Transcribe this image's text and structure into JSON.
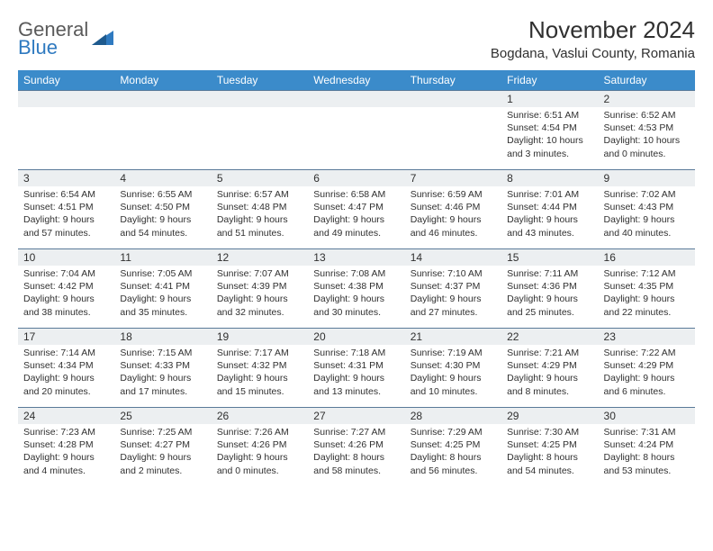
{
  "logo": {
    "name": "General",
    "sub": "Blue"
  },
  "title": "November 2024",
  "subtitle": "Bogdana, Vaslui County, Romania",
  "colors": {
    "header_bg": "#3b8bca",
    "header_fg": "#ffffff",
    "daynum_bg": "#eceff1",
    "row_border": "#5a7a99",
    "text": "#303030",
    "logo_gray": "#5a5a5a",
    "logo_blue": "#2f7ac0"
  },
  "weekdays": [
    "Sunday",
    "Monday",
    "Tuesday",
    "Wednesday",
    "Thursday",
    "Friday",
    "Saturday"
  ],
  "weeks": [
    [
      null,
      null,
      null,
      null,
      null,
      {
        "d": "1",
        "sr": "6:51 AM",
        "ss": "4:54 PM",
        "dl": "10 hours and 3 minutes."
      },
      {
        "d": "2",
        "sr": "6:52 AM",
        "ss": "4:53 PM",
        "dl": "10 hours and 0 minutes."
      }
    ],
    [
      {
        "d": "3",
        "sr": "6:54 AM",
        "ss": "4:51 PM",
        "dl": "9 hours and 57 minutes."
      },
      {
        "d": "4",
        "sr": "6:55 AM",
        "ss": "4:50 PM",
        "dl": "9 hours and 54 minutes."
      },
      {
        "d": "5",
        "sr": "6:57 AM",
        "ss": "4:48 PM",
        "dl": "9 hours and 51 minutes."
      },
      {
        "d": "6",
        "sr": "6:58 AM",
        "ss": "4:47 PM",
        "dl": "9 hours and 49 minutes."
      },
      {
        "d": "7",
        "sr": "6:59 AM",
        "ss": "4:46 PM",
        "dl": "9 hours and 46 minutes."
      },
      {
        "d": "8",
        "sr": "7:01 AM",
        "ss": "4:44 PM",
        "dl": "9 hours and 43 minutes."
      },
      {
        "d": "9",
        "sr": "7:02 AM",
        "ss": "4:43 PM",
        "dl": "9 hours and 40 minutes."
      }
    ],
    [
      {
        "d": "10",
        "sr": "7:04 AM",
        "ss": "4:42 PM",
        "dl": "9 hours and 38 minutes."
      },
      {
        "d": "11",
        "sr": "7:05 AM",
        "ss": "4:41 PM",
        "dl": "9 hours and 35 minutes."
      },
      {
        "d": "12",
        "sr": "7:07 AM",
        "ss": "4:39 PM",
        "dl": "9 hours and 32 minutes."
      },
      {
        "d": "13",
        "sr": "7:08 AM",
        "ss": "4:38 PM",
        "dl": "9 hours and 30 minutes."
      },
      {
        "d": "14",
        "sr": "7:10 AM",
        "ss": "4:37 PM",
        "dl": "9 hours and 27 minutes."
      },
      {
        "d": "15",
        "sr": "7:11 AM",
        "ss": "4:36 PM",
        "dl": "9 hours and 25 minutes."
      },
      {
        "d": "16",
        "sr": "7:12 AM",
        "ss": "4:35 PM",
        "dl": "9 hours and 22 minutes."
      }
    ],
    [
      {
        "d": "17",
        "sr": "7:14 AM",
        "ss": "4:34 PM",
        "dl": "9 hours and 20 minutes."
      },
      {
        "d": "18",
        "sr": "7:15 AM",
        "ss": "4:33 PM",
        "dl": "9 hours and 17 minutes."
      },
      {
        "d": "19",
        "sr": "7:17 AM",
        "ss": "4:32 PM",
        "dl": "9 hours and 15 minutes."
      },
      {
        "d": "20",
        "sr": "7:18 AM",
        "ss": "4:31 PM",
        "dl": "9 hours and 13 minutes."
      },
      {
        "d": "21",
        "sr": "7:19 AM",
        "ss": "4:30 PM",
        "dl": "9 hours and 10 minutes."
      },
      {
        "d": "22",
        "sr": "7:21 AM",
        "ss": "4:29 PM",
        "dl": "9 hours and 8 minutes."
      },
      {
        "d": "23",
        "sr": "7:22 AM",
        "ss": "4:29 PM",
        "dl": "9 hours and 6 minutes."
      }
    ],
    [
      {
        "d": "24",
        "sr": "7:23 AM",
        "ss": "4:28 PM",
        "dl": "9 hours and 4 minutes."
      },
      {
        "d": "25",
        "sr": "7:25 AM",
        "ss": "4:27 PM",
        "dl": "9 hours and 2 minutes."
      },
      {
        "d": "26",
        "sr": "7:26 AM",
        "ss": "4:26 PM",
        "dl": "9 hours and 0 minutes."
      },
      {
        "d": "27",
        "sr": "7:27 AM",
        "ss": "4:26 PM",
        "dl": "8 hours and 58 minutes."
      },
      {
        "d": "28",
        "sr": "7:29 AM",
        "ss": "4:25 PM",
        "dl": "8 hours and 56 minutes."
      },
      {
        "d": "29",
        "sr": "7:30 AM",
        "ss": "4:25 PM",
        "dl": "8 hours and 54 minutes."
      },
      {
        "d": "30",
        "sr": "7:31 AM",
        "ss": "4:24 PM",
        "dl": "8 hours and 53 minutes."
      }
    ]
  ],
  "labels": {
    "sunrise": "Sunrise:",
    "sunset": "Sunset:",
    "daylight": "Daylight:"
  }
}
